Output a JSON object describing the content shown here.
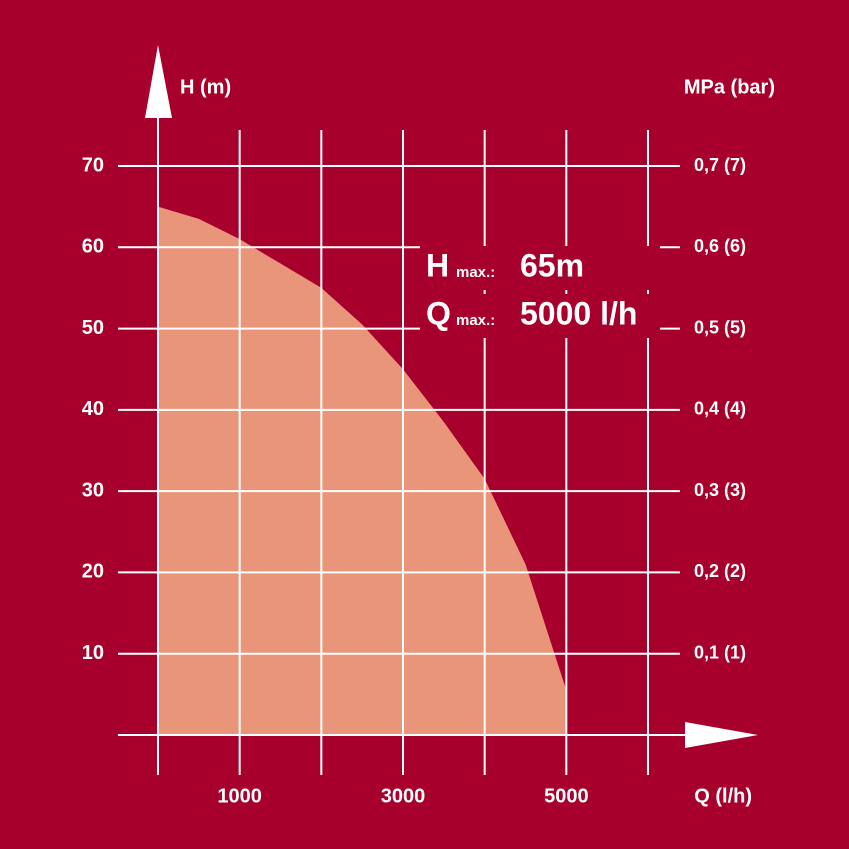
{
  "chart_data": {
    "type": "area",
    "y_label": "H (m)",
    "y2_label": "MPa (bar)",
    "x_label": "Q (l/h)",
    "x": [
      0,
      500,
      1000,
      1500,
      2000,
      2500,
      3000,
      3500,
      4000,
      4500,
      5000
    ],
    "series": [
      {
        "color": "#e8957a",
        "values": [
          65,
          63.5,
          61,
          58,
          55,
          50.5,
          45,
          38.5,
          31.5,
          21,
          5.5
        ]
      }
    ],
    "xlim": [
      0,
      6000
    ],
    "xticks": [
      1000,
      3000,
      5000
    ],
    "xminorticks": [
      0,
      2000,
      4000,
      6000
    ],
    "ylim": [
      0,
      70
    ],
    "yticks": [
      10,
      20,
      30,
      40,
      50,
      60,
      70
    ],
    "y2lim": [
      0,
      0.7
    ],
    "y2ticks": [
      {
        "value": 0.1,
        "label": "0,1 (1)"
      },
      {
        "value": 0.2,
        "label": "0,2 (2)"
      },
      {
        "value": 0.3,
        "label": "0,3 (3)"
      },
      {
        "value": 0.4,
        "label": "0,4 (4)"
      },
      {
        "value": 0.5,
        "label": "0,5 (5)"
      },
      {
        "value": 0.6,
        "label": "0,6 (6)"
      },
      {
        "value": 0.7,
        "label": "0,7 (7)"
      }
    ],
    "grid": true,
    "background": "#a8002c",
    "grid_color": "#ffffff",
    "annotations": [
      {
        "text": "H",
        "sub": "max.:",
        "value": "65m"
      },
      {
        "text": "Q",
        "sub": "max.:",
        "value": "5000 l/h"
      }
    ]
  }
}
